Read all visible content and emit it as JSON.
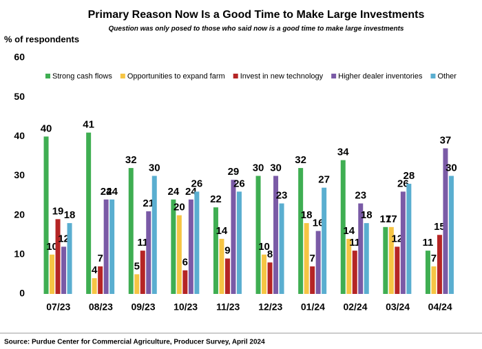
{
  "chart_data": {
    "type": "bar",
    "title": "Primary Reason Now Is a Good Time to Make Large Investments",
    "subtitle": "Question was only posed to those who said now is a good time to make large investments",
    "ylabel": "% of respondents",
    "source": "Source: Purdue Center for Commercial Agriculture, Producer Survey, April 2024",
    "categories": [
      "07/23",
      "08/23",
      "09/23",
      "10/23",
      "11/23",
      "12/23",
      "01/24",
      "02/24",
      "03/24",
      "04/24"
    ],
    "series": [
      {
        "name": "Strong cash flows",
        "color": "#3fae52",
        "values": [
          40,
          41,
          32,
          24,
          22,
          30,
          32,
          34,
          17,
          11
        ]
      },
      {
        "name": "Opportunities to expand farm",
        "color": "#f6c544",
        "values": [
          10,
          4,
          5,
          20,
          14,
          10,
          18,
          14,
          17,
          7
        ]
      },
      {
        "name": "Invest in new technology",
        "color": "#b52525",
        "values": [
          19,
          7,
          11,
          6,
          9,
          8,
          7,
          11,
          12,
          15
        ]
      },
      {
        "name": "Higher dealer inventories",
        "color": "#7a5aa6",
        "values": [
          12,
          24,
          21,
          24,
          29,
          30,
          16,
          23,
          26,
          37
        ]
      },
      {
        "name": "Other",
        "color": "#5aaed0",
        "values": [
          18,
          24,
          30,
          26,
          26,
          23,
          27,
          18,
          28,
          30
        ]
      }
    ],
    "ylim": [
      0,
      60
    ],
    "yticks": [
      0,
      10,
      20,
      30,
      40,
      50,
      60
    ],
    "grid": false
  }
}
